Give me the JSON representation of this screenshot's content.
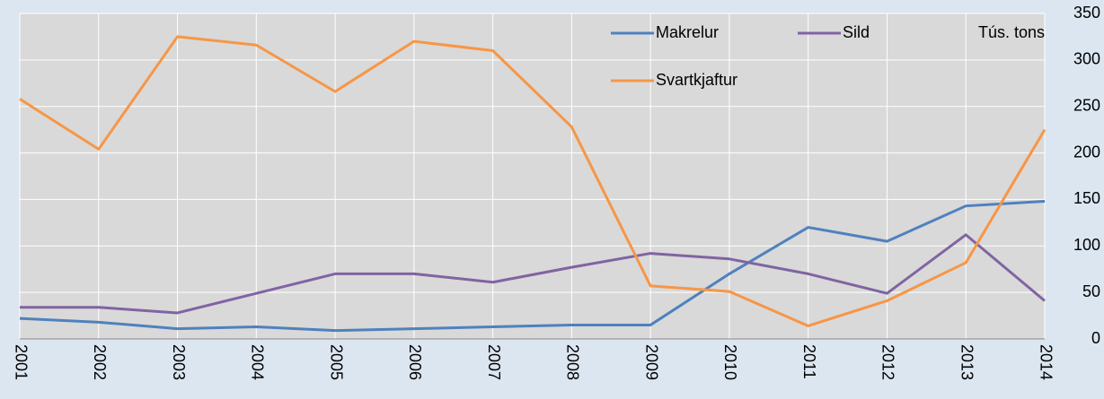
{
  "chart_data": {
    "type": "line",
    "x": [
      "2001",
      "2002",
      "2003",
      "2004",
      "2005",
      "2006",
      "2007",
      "2008",
      "2009",
      "2010",
      "2011",
      "2012",
      "2013",
      "2014"
    ],
    "y_axis_label": "Tús. tons",
    "ylim": [
      0,
      350
    ],
    "yticks": [
      0,
      50,
      100,
      150,
      200,
      250,
      300,
      350
    ],
    "grid": true,
    "series": [
      {
        "name": "Makrelur",
        "color": "#4f81bd",
        "values": [
          22,
          18,
          11,
          13,
          9,
          11,
          13,
          15,
          15,
          70,
          120,
          105,
          143,
          148
        ]
      },
      {
        "name": "Sild",
        "color": "#8064a2",
        "values": [
          34,
          34,
          28,
          49,
          70,
          70,
          61,
          77,
          92,
          86,
          70,
          49,
          112,
          41
        ]
      },
      {
        "name": "Svartkjaftur",
        "color": "#f79646",
        "values": [
          258,
          204,
          325,
          316,
          266,
          320,
          310,
          228,
          57,
          51,
          14,
          41,
          82,
          225
        ]
      }
    ]
  }
}
